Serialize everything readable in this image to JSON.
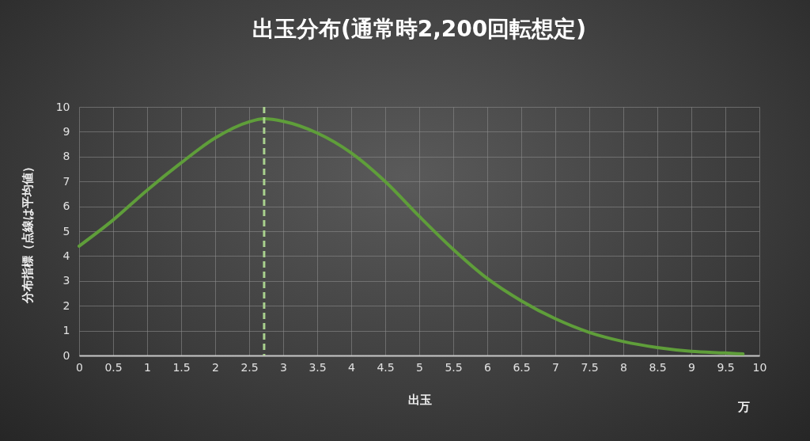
{
  "chart_data": {
    "type": "line",
    "title": "出玉分布(通常時2,200回転想定)",
    "xlabel": "出玉",
    "ylabel": "分布指標（点線は平均値）",
    "x": [
      0,
      0.5,
      1,
      1.5,
      2,
      2.5,
      2.72,
      3,
      3.5,
      4,
      4.5,
      5,
      5.5,
      6,
      6.5,
      7,
      7.5,
      8,
      8.5,
      9,
      9.5,
      9.76
    ],
    "series": [
      {
        "color": "#5f9e3a",
        "values": [
          4.4,
          5.45,
          6.65,
          7.75,
          8.75,
          9.4,
          9.52,
          9.42,
          8.95,
          8.15,
          7.0,
          5.6,
          4.27,
          3.1,
          2.2,
          1.48,
          0.93,
          0.56,
          0.32,
          0.17,
          0.1,
          0.06
        ]
      }
    ],
    "xlim": [
      0,
      10
    ],
    "ylim": [
      0,
      10
    ],
    "xticks": [
      0,
      0.5,
      1,
      1.5,
      2,
      2.5,
      3,
      3.5,
      4,
      4.5,
      5,
      5.5,
      6,
      6.5,
      7,
      7.5,
      8,
      8.5,
      9,
      9.5,
      10
    ],
    "yticks": [
      0,
      1,
      2,
      3,
      4,
      5,
      6,
      7,
      8,
      9,
      10
    ],
    "ref_lines": [
      {
        "axis": "x",
        "value": 2.72,
        "color": "#a9d18e",
        "line_style": "dashed"
      }
    ],
    "annotations": [
      "万"
    ],
    "grid": true,
    "legend": false,
    "marker": "none",
    "line_style": "solid"
  }
}
